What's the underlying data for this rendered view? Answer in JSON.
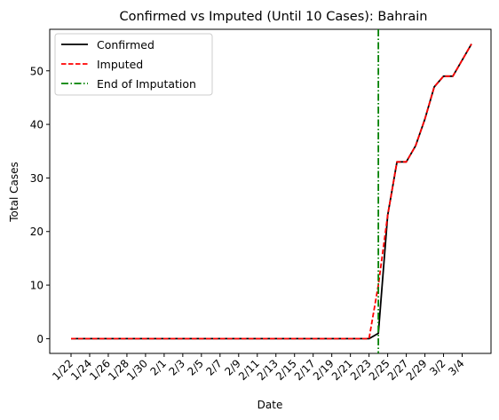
{
  "chart_data": {
    "type": "line",
    "title": "Confirmed vs Imputed (Until 10 Cases): Bahrain",
    "xlabel": "Date",
    "ylabel": "Total Cases",
    "ylim": [
      -2.75,
      57.75
    ],
    "yticks": [
      0,
      10,
      20,
      30,
      40,
      50
    ],
    "grid": false,
    "legend_position": "top-left",
    "x": [
      "1/22",
      "1/23",
      "1/24",
      "1/25",
      "1/26",
      "1/27",
      "1/28",
      "1/29",
      "1/30",
      "1/31",
      "2/1",
      "2/2",
      "2/3",
      "2/4",
      "2/5",
      "2/6",
      "2/7",
      "2/8",
      "2/9",
      "2/10",
      "2/11",
      "2/12",
      "2/13",
      "2/14",
      "2/15",
      "2/16",
      "2/17",
      "2/18",
      "2/19",
      "2/20",
      "2/21",
      "2/22",
      "2/23",
      "2/24",
      "2/25",
      "2/26",
      "2/27",
      "2/28",
      "2/29",
      "3/1",
      "3/2",
      "3/3",
      "3/4",
      "3/5"
    ],
    "xtick_labels": [
      "1/22",
      "1/24",
      "1/26",
      "1/28",
      "1/30",
      "2/1",
      "2/3",
      "2/5",
      "2/7",
      "2/9",
      "2/11",
      "2/13",
      "2/15",
      "2/17",
      "2/19",
      "2/21",
      "2/23",
      "2/25",
      "2/27",
      "2/29",
      "3/2",
      "3/4"
    ],
    "series": [
      {
        "name": "Confirmed",
        "color": "#000000",
        "style": "solid",
        "values": [
          0,
          0,
          0,
          0,
          0,
          0,
          0,
          0,
          0,
          0,
          0,
          0,
          0,
          0,
          0,
          0,
          0,
          0,
          0,
          0,
          0,
          0,
          0,
          0,
          0,
          0,
          0,
          0,
          0,
          0,
          0,
          0,
          0,
          1,
          23,
          33,
          33,
          36,
          41,
          47,
          49,
          49,
          52,
          55
        ]
      },
      {
        "name": "Imputed",
        "color": "#ff0000",
        "style": "dashed",
        "values": [
          0,
          0,
          0,
          0,
          0,
          0,
          0,
          0,
          0,
          0,
          0,
          0,
          0,
          0,
          0,
          0,
          0,
          0,
          0,
          0,
          0,
          0,
          0,
          0,
          0,
          0,
          0,
          0,
          0,
          0,
          0,
          0,
          0,
          10,
          23,
          33,
          33,
          36,
          41,
          47,
          49,
          49,
          52,
          55
        ]
      }
    ],
    "vlines": [
      {
        "name": "End of Imputation",
        "x": "2/24",
        "color": "#008000",
        "style": "dashdot"
      }
    ]
  }
}
